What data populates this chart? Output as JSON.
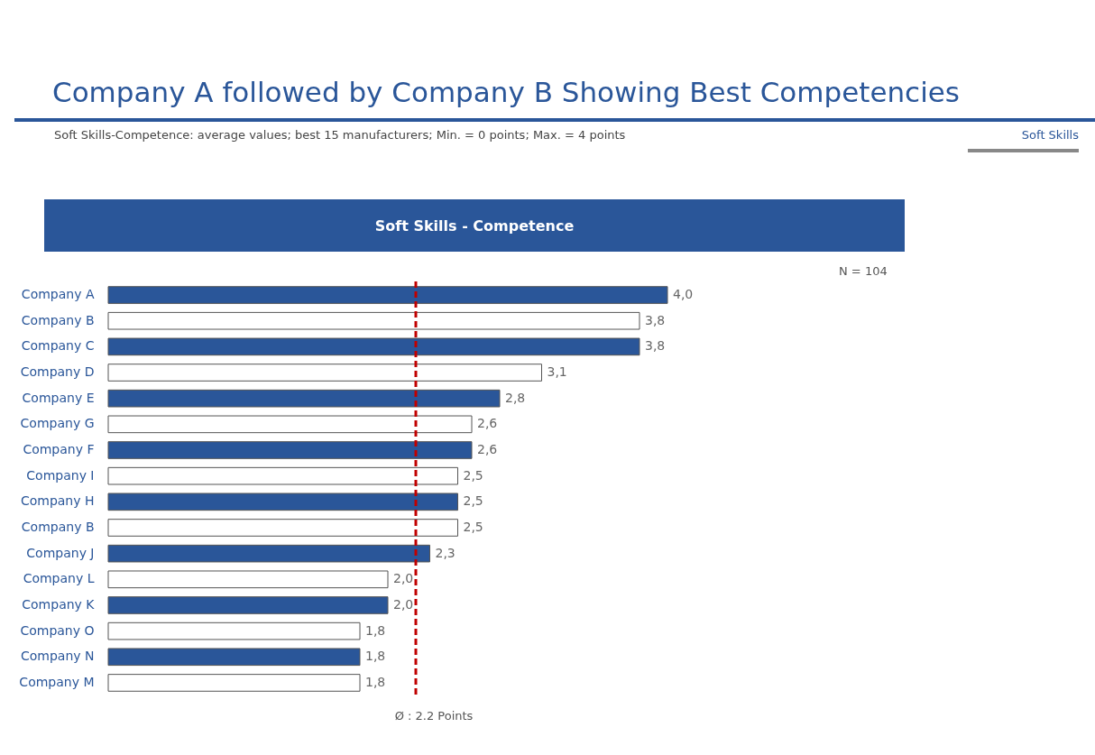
{
  "chart_data": {
    "type": "bar",
    "orientation": "horizontal",
    "title": "Company A followed by Company B Showing Best Competencies",
    "subtitle": "Soft Skills-Competence: average values; best 15 manufacturers;  Min. = 0 points; Max. = 4 points",
    "annotations": [
      "Soft Skills",
      "Soft Skills - Competence",
      "N = 104"
    ],
    "categories": [
      "Company A",
      "Company B",
      "Company C",
      "Company D",
      "Company E",
      "Company G",
      "Company F",
      "Company I",
      "Company H",
      "Company B",
      "Company J",
      "Company L",
      "Company K",
      "Company O",
      "Company N",
      "Company M"
    ],
    "values": [
      4.0,
      3.8,
      3.8,
      3.1,
      2.8,
      2.6,
      2.6,
      2.5,
      2.5,
      2.5,
      2.3,
      2.0,
      2.0,
      1.8,
      1.8,
      1.8
    ],
    "value_labels": [
      "4,0",
      "3,8",
      "3,8",
      "3,1",
      "2,8",
      "2,6",
      "2,6",
      "2,5",
      "2,5",
      "2,5",
      "2,3",
      "2,0",
      "2,0",
      "1,8",
      "1,8",
      "1,8"
    ],
    "colors": [
      "#2a5699",
      "#ffffff",
      "#2a5699",
      "#ffffff",
      "#2a5699",
      "#ffffff",
      "#2a5699",
      "#ffffff",
      "#2a5699",
      "#ffffff",
      "#2a5699",
      "#ffffff",
      "#2a5699",
      "#ffffff",
      "#2a5699",
      "#ffffff"
    ],
    "xlim": [
      0,
      4
    ],
    "ref_lines": [
      {
        "axis": "x",
        "value": 2.2,
        "label": "Ø : 2.2 Points",
        "color": "#c00000",
        "line_style": "dashed"
      }
    ],
    "tick_labels": "y"
  }
}
